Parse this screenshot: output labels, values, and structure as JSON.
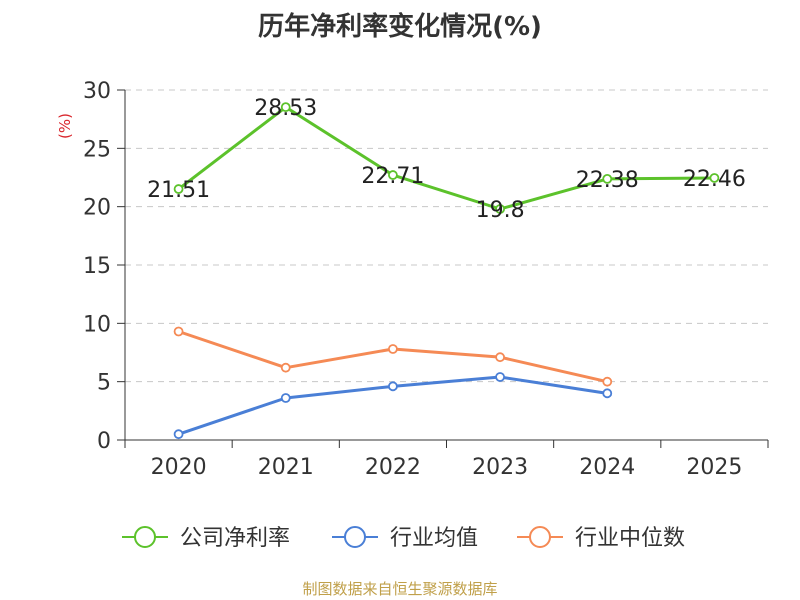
{
  "chart_data": {
    "type": "line",
    "title": "历年净利率变化情况(%)",
    "ylabel": "(%)",
    "xlabel": "",
    "categories": [
      "2020",
      "2021",
      "2022",
      "2023",
      "2024",
      "2025"
    ],
    "ylim": [
      0,
      30
    ],
    "yticks": [
      0,
      5,
      10,
      15,
      20,
      25,
      30
    ],
    "grid": true,
    "legend_position": "bottom",
    "series": [
      {
        "name": "公司净利率",
        "color": "#5cc22b",
        "values": [
          21.51,
          28.53,
          22.71,
          19.8,
          22.38,
          22.46
        ],
        "labels": [
          "21.51",
          "28.53",
          "22.71",
          "19.8",
          "22.38",
          "22.46"
        ]
      },
      {
        "name": "行业均值",
        "color": "#4a7fd6",
        "values": [
          0.5,
          3.6,
          4.6,
          5.4,
          4.0,
          null
        ]
      },
      {
        "name": "行业中位数",
        "color": "#f58a55",
        "values": [
          9.3,
          6.2,
          7.8,
          7.1,
          5.0,
          null
        ]
      }
    ]
  },
  "source_text": "制图数据来自恒生聚源数据库"
}
